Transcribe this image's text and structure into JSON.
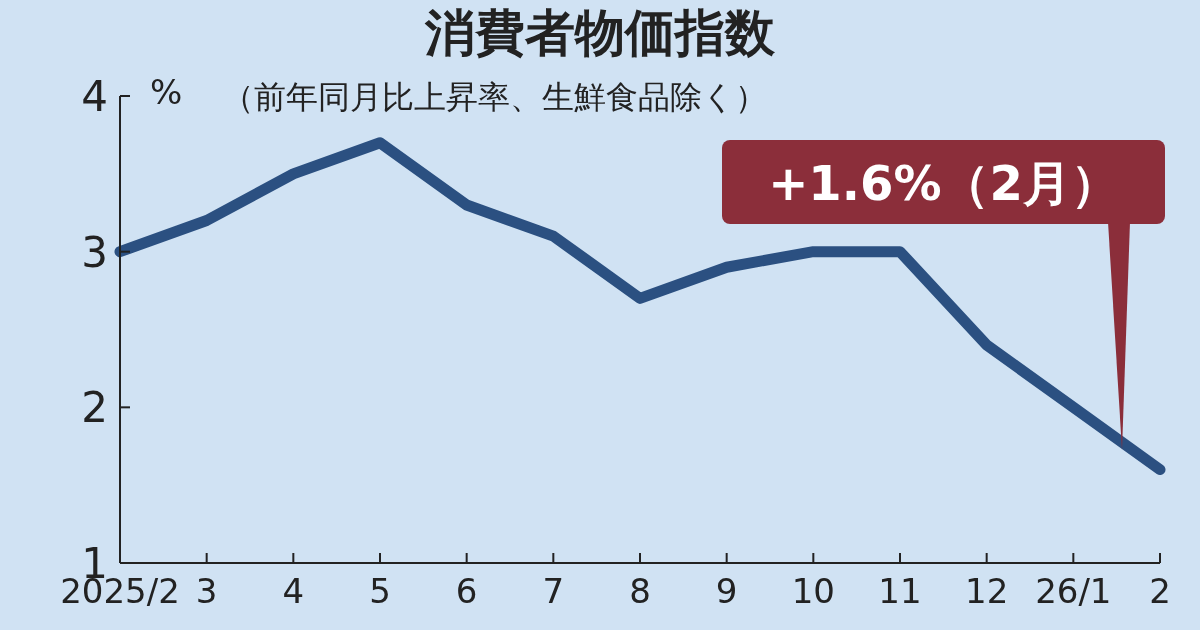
{
  "chart_data": {
    "type": "line",
    "title": "消費者物価指数",
    "subtitle": "（前年同月比上昇率、生鮮食品除く）",
    "ylabel": "%",
    "categories": [
      "2025/2",
      "3",
      "4",
      "5",
      "6",
      "7",
      "8",
      "9",
      "10",
      "11",
      "12",
      "26/1",
      "2"
    ],
    "series": [
      {
        "color": "#2b5081",
        "values": [
          3.0,
          3.2,
          3.5,
          3.7,
          3.3,
          3.1,
          2.7,
          2.9,
          3.0,
          3.0,
          2.4,
          2.0,
          1.6
        ]
      }
    ],
    "ylim": [
      1,
      4
    ],
    "yticks": [
      1,
      2,
      3,
      4
    ],
    "marker": "none",
    "line_style": "solid",
    "annotations": [
      "+1.6%（2月）"
    ]
  }
}
